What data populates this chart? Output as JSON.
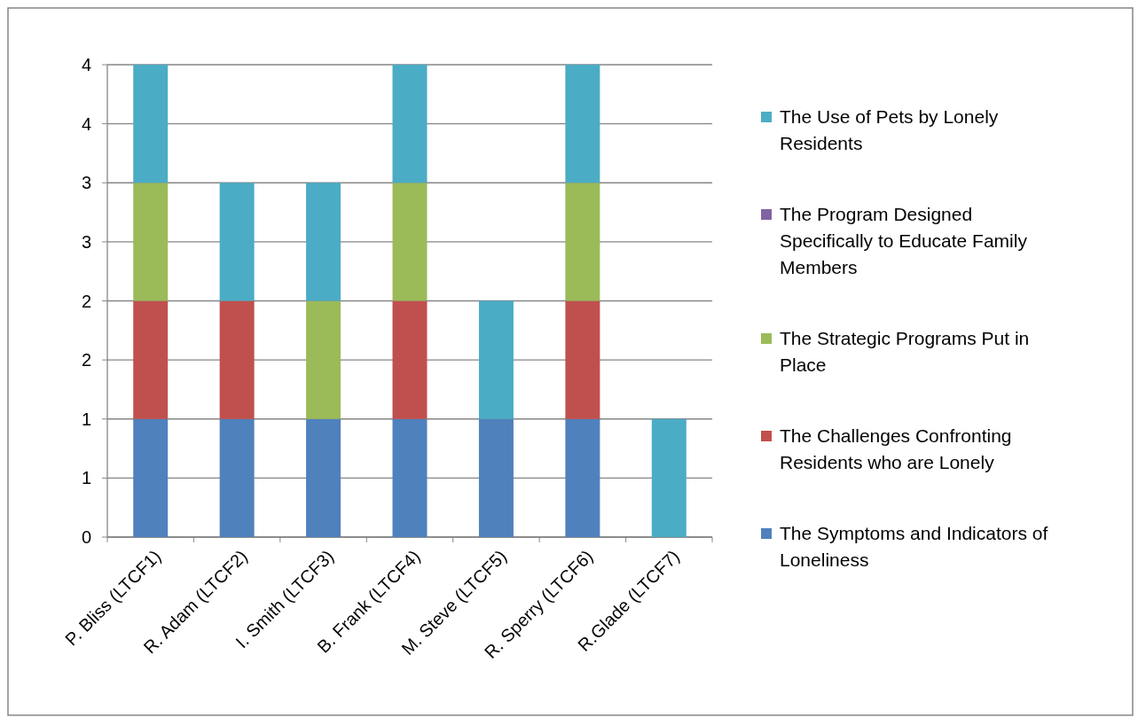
{
  "chart_data": {
    "type": "bar",
    "stacked": true,
    "categories": [
      "P. Bliss (LTCF1)",
      "R. Adam (LTCF2)",
      "I. Smith (LTCF3)",
      "B. Frank (LTCF4)",
      "M. Steve (LTCF5)",
      "R. Sperry (LTCF6)",
      "R.Glade (LTCF7)"
    ],
    "series": [
      {
        "name": "The Symptoms and Indicators of Loneliness",
        "color": "#4f81bd",
        "values": [
          1,
          1,
          1,
          1,
          1,
          1,
          0
        ]
      },
      {
        "name": "The Challenges Confronting Residents who are Lonely",
        "color": "#c0504d",
        "values": [
          1,
          1,
          0,
          1,
          0,
          1,
          0
        ]
      },
      {
        "name": "The Strategic Programs Put in Place",
        "color": "#9bbb59",
        "values": [
          1,
          0,
          1,
          1,
          0,
          1,
          0
        ]
      },
      {
        "name": "The Program Designed Specifically to Educate Family Members",
        "color": "#8064a2",
        "values": [
          0,
          0,
          0,
          0,
          0,
          0,
          0
        ]
      },
      {
        "name": "The Use of Pets by Lonely Residents",
        "color": "#4bacc6",
        "values": [
          1,
          1,
          1,
          1,
          1,
          1,
          1
        ]
      }
    ],
    "ylim": [
      0,
      4
    ],
    "yticks": [
      0,
      {
        "value": 0.5,
        "label": "1"
      },
      1,
      {
        "value": 1.5,
        "label": "2"
      },
      2,
      {
        "value": 2.5,
        "label": "3"
      },
      3,
      {
        "value": 3.5,
        "label": "4"
      },
      4
    ],
    "grid": "y",
    "legend": "right"
  }
}
